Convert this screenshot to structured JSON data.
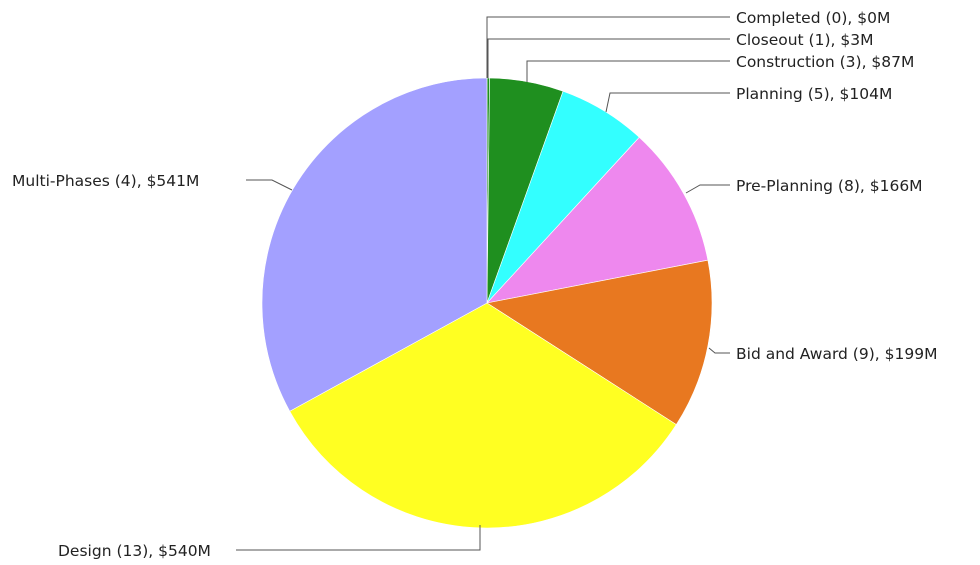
{
  "chart_data": {
    "type": "pie",
    "title": "",
    "start": "12 o'clock",
    "direction": "clockwise",
    "slices": [
      {
        "category": "Completed",
        "count": 0,
        "value": 0,
        "label": "Completed (0), $0M",
        "color": "#1f8f1f"
      },
      {
        "category": "Closeout",
        "count": 1,
        "value": 3,
        "label": "Closeout (1), $3M",
        "color": "#1f8f1f"
      },
      {
        "category": "Construction",
        "count": 3,
        "value": 87,
        "label": "Construction (3), $87M",
        "color": "#1f8f1f"
      },
      {
        "category": "Planning",
        "count": 5,
        "value": 104,
        "label": "Planning (5), $104M",
        "color": "#33ffff"
      },
      {
        "category": "Pre-Planning",
        "count": 8,
        "value": 166,
        "label": "Pre-Planning (8), $166M",
        "color": "#ee88ee"
      },
      {
        "category": "Bid and Award",
        "count": 9,
        "value": 199,
        "label": "Bid and Award (9), $199M",
        "color": "#e87820"
      },
      {
        "category": "Design",
        "count": 13,
        "value": 540,
        "label": "Design (13), $540M",
        "color": "#ffff22"
      },
      {
        "category": "Multi-Phases",
        "count": 4,
        "value": 541,
        "label": "Multi-Phases (4), $541M",
        "color": "#a3a0ff"
      }
    ]
  }
}
